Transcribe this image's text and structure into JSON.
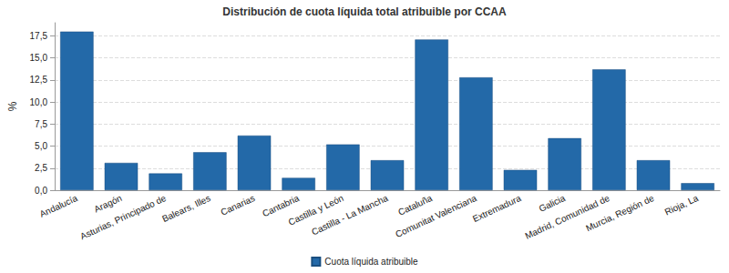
{
  "chart_data": {
    "type": "bar",
    "title": "Distribución de cuota líquida total atribuible por CCAA",
    "y_label": "%",
    "categories": [
      "Andalucía",
      "Aragón",
      "Asturias, Principado de",
      "Balears, Illes",
      "Canarias",
      "Cantabria",
      "Castilla y León",
      "Castilla - La Mancha",
      "Cataluña",
      "Comunitat Valenciana",
      "Extremadura",
      "Galicia",
      "Madrid, Comunidad de",
      "Murcia, Región de",
      "Rioja, La"
    ],
    "series": [
      {
        "name": "Cuota líquida atribuible",
        "color": "#2369a8",
        "values": [
          18.0,
          3.1,
          1.9,
          4.3,
          6.2,
          1.4,
          5.2,
          3.4,
          17.1,
          12.8,
          2.3,
          5.9,
          13.7,
          3.4,
          0.8
        ]
      }
    ],
    "ylim": [
      0,
      19
    ],
    "yticks": [
      {
        "value": 0,
        "label": "0,0"
      },
      {
        "value": 2.5,
        "label": "2,5"
      },
      {
        "value": 5,
        "label": "5,0"
      },
      {
        "value": 7.5,
        "label": "7,5"
      },
      {
        "value": 10,
        "label": "10,0"
      },
      {
        "value": 12.5,
        "label": "12,5"
      },
      {
        "value": 15,
        "label": "15,0"
      },
      {
        "value": 17.5,
        "label": "17,5"
      }
    ],
    "grid": true,
    "legend": "bottom"
  }
}
